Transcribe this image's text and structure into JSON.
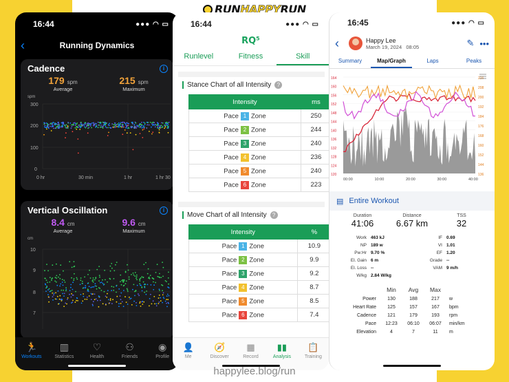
{
  "brand": "RUNHAPPYRUN",
  "footer": "happylee.blog/run",
  "phone1": {
    "time": "16:44",
    "status_icons": "●●● ◠ ▭",
    "title": "Running Dynamics",
    "cadence": {
      "title": "Cadence",
      "avg_value": "179",
      "avg_unit": "spm",
      "avg_label": "Average",
      "max_value": "215",
      "max_unit": "spm",
      "max_label": "Maximum",
      "y_unit": "spm",
      "y_ticks": [
        "300",
        "200",
        "100",
        "0"
      ],
      "x_ticks": [
        "0 hr",
        "30 min",
        "1 hr",
        "1 hr 30"
      ]
    },
    "vertical_oscillation": {
      "title": "Vertical Oscillation",
      "avg_value": "8.4",
      "avg_unit": "cm",
      "avg_label": "Average",
      "max_value": "9.6",
      "max_unit": "cm",
      "max_label": "Maximum",
      "y_unit": "cm",
      "y_ticks": [
        "10",
        "9",
        "8",
        "7"
      ]
    },
    "tabs": [
      "Workouts",
      "Statistics",
      "Health",
      "Friends",
      "Profile"
    ],
    "tab_icons": [
      "runner-icon",
      "bar-chart-icon",
      "heart-icon",
      "people-icon",
      "person-icon"
    ],
    "accent": "#0a84ff"
  },
  "phone2": {
    "time": "16:44",
    "logo": "RQ⁵",
    "tabs": [
      "Runlevel",
      "Fitness",
      "Skill"
    ],
    "stance": {
      "title": "Stance Chart of all Intensity",
      "headers": [
        "Intensity",
        "ms"
      ],
      "rows": [
        {
          "pace": "Pace",
          "zone": "1",
          "zone_label": "Zone",
          "value": "250",
          "color": "#4ab3e6"
        },
        {
          "pace": "Pace",
          "zone": "2",
          "zone_label": "Zone",
          "value": "244",
          "color": "#7cc143"
        },
        {
          "pace": "Pace",
          "zone": "3",
          "zone_label": "Zone",
          "value": "240",
          "color": "#2ea36a"
        },
        {
          "pace": "Pace",
          "zone": "4",
          "zone_label": "Zone",
          "value": "236",
          "color": "#f2c12e"
        },
        {
          "pace": "Pace",
          "zone": "5",
          "zone_label": "Zone",
          "value": "240",
          "color": "#f08a2c"
        },
        {
          "pace": "Pace",
          "zone": "6",
          "zone_label": "Zone",
          "value": "223",
          "color": "#e8453c"
        }
      ]
    },
    "move": {
      "title": "Move Chart of all Intensity",
      "headers": [
        "Intensity",
        "%"
      ],
      "rows": [
        {
          "pace": "Pace",
          "zone": "1",
          "zone_label": "Zone",
          "value": "10.9",
          "color": "#4ab3e6"
        },
        {
          "pace": "Pace",
          "zone": "2",
          "zone_label": "Zone",
          "value": "9.9",
          "color": "#7cc143"
        },
        {
          "pace": "Pace",
          "zone": "3",
          "zone_label": "Zone",
          "value": "9.2",
          "color": "#2ea36a"
        },
        {
          "pace": "Pace",
          "zone": "4",
          "zone_label": "Zone",
          "value": "8.7",
          "color": "#f2c12e"
        },
        {
          "pace": "Pace",
          "zone": "5",
          "zone_label": "Zone",
          "value": "8.5",
          "color": "#f08a2c"
        },
        {
          "pace": "Pace",
          "zone": "6",
          "zone_label": "Zone",
          "value": "7.4",
          "color": "#e8453c"
        }
      ]
    },
    "bottom_tabs": [
      "Me",
      "Discover",
      "Record",
      "Analysis",
      "Training"
    ],
    "accent": "#1a9d57"
  },
  "phone3": {
    "time": "16:45",
    "user": "Happy Lee",
    "date": "March 19, 2024",
    "clock": "08:05",
    "tabs": [
      "Summary",
      "Map/Graph",
      "Laps",
      "Peaks"
    ],
    "graph": {
      "x_ticks": [
        "00:00",
        "10:00",
        "20:00",
        "30:00",
        "40:00"
      ],
      "y_left": [
        "164",
        "160",
        "156",
        "152",
        "148",
        "144",
        "140",
        "136",
        "132",
        "128",
        "124",
        "120"
      ],
      "y_right": [
        "216",
        "208",
        "200",
        "192",
        "184",
        "176",
        "168",
        "160",
        "152",
        "144",
        "136"
      ]
    },
    "section_title": "Entire Workout",
    "overview": [
      {
        "label": "Duration",
        "value": "41:06"
      },
      {
        "label": "Distance",
        "value": "6.67 km"
      },
      {
        "label": "TSS",
        "value": "32"
      }
    ],
    "metrics_left": [
      {
        "k": "Work",
        "v": "463 kJ"
      },
      {
        "k": "NP",
        "v": "189 w"
      },
      {
        "k": "Pw:Hr",
        "v": "9.70 %"
      },
      {
        "k": "El. Gain",
        "v": "6 m"
      },
      {
        "k": "El. Loss",
        "v": "--"
      },
      {
        "k": "W/kg",
        "v": "2.84 W/kg"
      }
    ],
    "metrics_right": [
      {
        "k": "IF",
        "v": "0.69"
      },
      {
        "k": "VI",
        "v": "1.01"
      },
      {
        "k": "EF",
        "v": "1.20"
      },
      {
        "k": "Grade",
        "v": "--"
      },
      {
        "k": "VAM",
        "v": "9 m/h"
      }
    ],
    "minmax_headers": [
      "Min",
      "Avg",
      "Max"
    ],
    "minmax_rows": [
      {
        "label": "Power",
        "min": "130",
        "avg": "188",
        "max": "217",
        "unit": "w"
      },
      {
        "label": "Heart Rate",
        "min": "125",
        "avg": "157",
        "max": "167",
        "unit": "bpm"
      },
      {
        "label": "Cadence",
        "min": "121",
        "avg": "179",
        "max": "193",
        "unit": "rpm"
      },
      {
        "label": "Pace",
        "min": "12:23",
        "avg": "06:10",
        "max": "06:07",
        "unit": "min/km"
      },
      {
        "label": "Elevation",
        "min": "4",
        "avg": "7",
        "max": "11",
        "unit": "m"
      }
    ],
    "accent": "#1a56b0"
  }
}
